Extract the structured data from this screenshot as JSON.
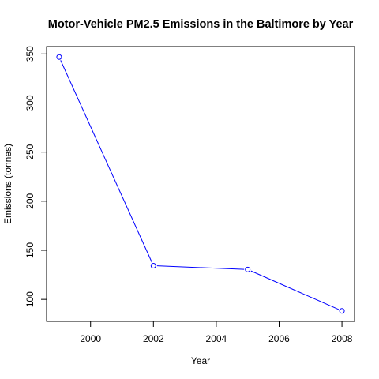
{
  "chart_data": {
    "type": "line",
    "title": "Motor-Vehicle PM2.5 Emissions in the Baltimore by Year",
    "xlabel": "Year",
    "ylabel": "Emissions (tonnes)",
    "x": [
      1999,
      2002,
      2005,
      2008
    ],
    "series": [
      {
        "values": [
          346.82,
          134.31,
          130.43,
          88.28
        ],
        "color": "#0000ff",
        "marker": "open-circle"
      }
    ],
    "xlim": [
      1998.6,
      2008.4
    ],
    "ylim": [
      77.6,
      357.5
    ],
    "xticks": [
      2000,
      2002,
      2004,
      2006,
      2008
    ],
    "yticks": [
      100,
      150,
      200,
      250,
      300,
      350
    ],
    "grid": false,
    "legend": "none"
  }
}
